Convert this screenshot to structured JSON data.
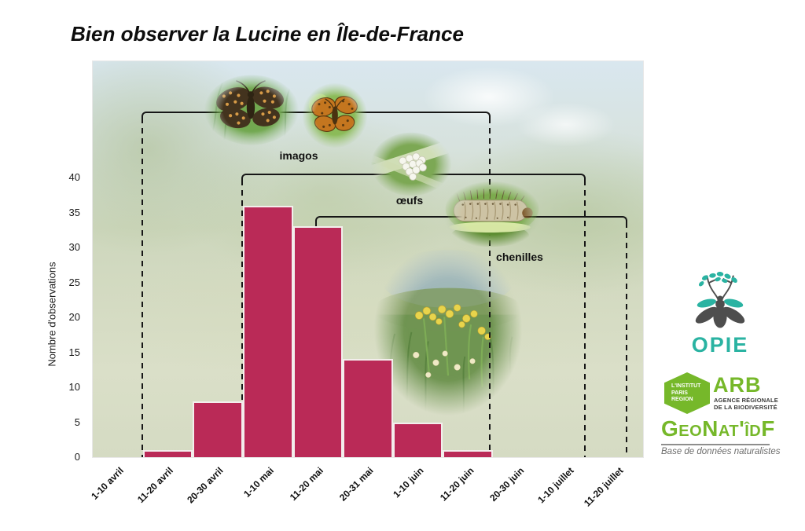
{
  "title": "Bien observer la Lucine en Île-de-France",
  "chart_data": {
    "type": "bar",
    "title": "Bien observer la Lucine en Île-de-France",
    "categories": [
      "1-10 avril",
      "11-20 avril",
      "20-30 avril",
      "1-10 mai",
      "11-20 mai",
      "20-31 mai",
      "1-10 juin",
      "11-20 juin",
      "20-30 juin",
      "1-10 juillet",
      "11-20 juillet"
    ],
    "values": [
      0,
      1,
      8,
      36,
      33,
      14,
      5,
      1,
      0,
      0,
      0
    ],
    "xlabel": "",
    "ylabel": "Nombre d'observations",
    "ylim": [
      0,
      40
    ],
    "yticks": [
      0,
      5,
      10,
      15,
      20,
      25,
      30,
      35,
      40
    ],
    "grid": false,
    "bar_color": "#ba2a57",
    "annotations": [
      {
        "label": "imagos",
        "from": "11-20 avril",
        "to": "11-20 juin"
      },
      {
        "label": "œufs",
        "from": "1-10 mai",
        "to": "1-10 juillet"
      },
      {
        "label": "chenilles",
        "from": "11-20 mai",
        "to": "11-20 juillet"
      }
    ]
  },
  "stage_images": {
    "imago1": "photo adulte (imago) de Lucine",
    "imago2": "photo adulte (imago) de Lucine",
    "eggs": "photo œufs",
    "caterpillar": "photo chenille",
    "flowers": "photo primevères (plante hôte)"
  },
  "logos": {
    "opie": {
      "label": "OPIE"
    },
    "arb": {
      "hexagon_lines": [
        "L'INSTITUT",
        "PARIS",
        "REGION"
      ],
      "acronym": "ARB",
      "subtitle_line1": "AGENCE RÉGIONALE",
      "subtitle_line2": "DE LA BIODIVERSITÉ"
    },
    "geonat": {
      "wordmark": "GeoNat'îdF",
      "tagline": "Base de données naturalistes"
    }
  },
  "colors": {
    "bar": "#ba2a57",
    "line": "#161616",
    "opie_teal": "#2ab3a2",
    "arb_green": "#76b82a"
  }
}
